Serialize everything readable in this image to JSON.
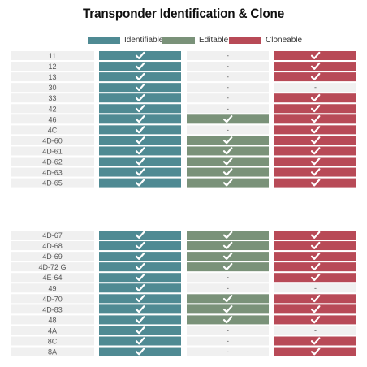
{
  "chart_data": {
    "type": "table",
    "title": "Transponder Identification & Clone",
    "legend": [
      {
        "name": "Identifiable",
        "color": "#4f8a93"
      },
      {
        "name": "Editable",
        "color": "#7a9279"
      },
      {
        "name": "Cloneable",
        "color": "#b84a57"
      }
    ],
    "columns": [
      "Identifiable",
      "Editable",
      "Cloneable"
    ],
    "groups": [
      {
        "rows": [
          {
            "label": "11",
            "values": [
              true,
              false,
              true
            ]
          },
          {
            "label": "12",
            "values": [
              true,
              false,
              true
            ]
          },
          {
            "label": "13",
            "values": [
              true,
              false,
              true
            ]
          },
          {
            "label": "30",
            "values": [
              true,
              false,
              false
            ]
          },
          {
            "label": "33",
            "values": [
              true,
              false,
              true
            ]
          },
          {
            "label": "42",
            "values": [
              true,
              false,
              true
            ]
          },
          {
            "label": "46",
            "values": [
              true,
              true,
              true
            ]
          },
          {
            "label": "4C",
            "values": [
              true,
              false,
              true
            ]
          },
          {
            "label": "4D-60",
            "values": [
              true,
              true,
              true
            ]
          },
          {
            "label": "4D-61",
            "values": [
              true,
              true,
              true
            ]
          },
          {
            "label": "4D-62",
            "values": [
              true,
              true,
              true
            ]
          },
          {
            "label": "4D-63",
            "values": [
              true,
              true,
              true
            ]
          },
          {
            "label": "4D-65",
            "values": [
              true,
              true,
              true
            ]
          }
        ]
      },
      {
        "rows": [
          {
            "label": "4D-67",
            "values": [
              true,
              true,
              true
            ]
          },
          {
            "label": "4D-68",
            "values": [
              true,
              true,
              true
            ]
          },
          {
            "label": "4D-69",
            "values": [
              true,
              true,
              true
            ]
          },
          {
            "label": "4D-72 G",
            "values": [
              true,
              true,
              true
            ]
          },
          {
            "label": "4E-64",
            "values": [
              true,
              false,
              true
            ]
          },
          {
            "label": "49",
            "values": [
              true,
              false,
              false
            ]
          },
          {
            "label": "4D-70",
            "values": [
              true,
              true,
              true
            ]
          },
          {
            "label": "4D-83",
            "values": [
              true,
              true,
              true
            ]
          },
          {
            "label": "48",
            "values": [
              true,
              true,
              true
            ]
          },
          {
            "label": "4A",
            "values": [
              true,
              false,
              false
            ]
          },
          {
            "label": "8C",
            "values": [
              true,
              false,
              true
            ]
          },
          {
            "label": "8A",
            "values": [
              true,
              false,
              true
            ]
          }
        ]
      }
    ],
    "absent_mark": "-",
    "present_mark": "check-icon",
    "absent_color": "#f0f0f0",
    "label_bg_color": "#f0f0f0"
  }
}
